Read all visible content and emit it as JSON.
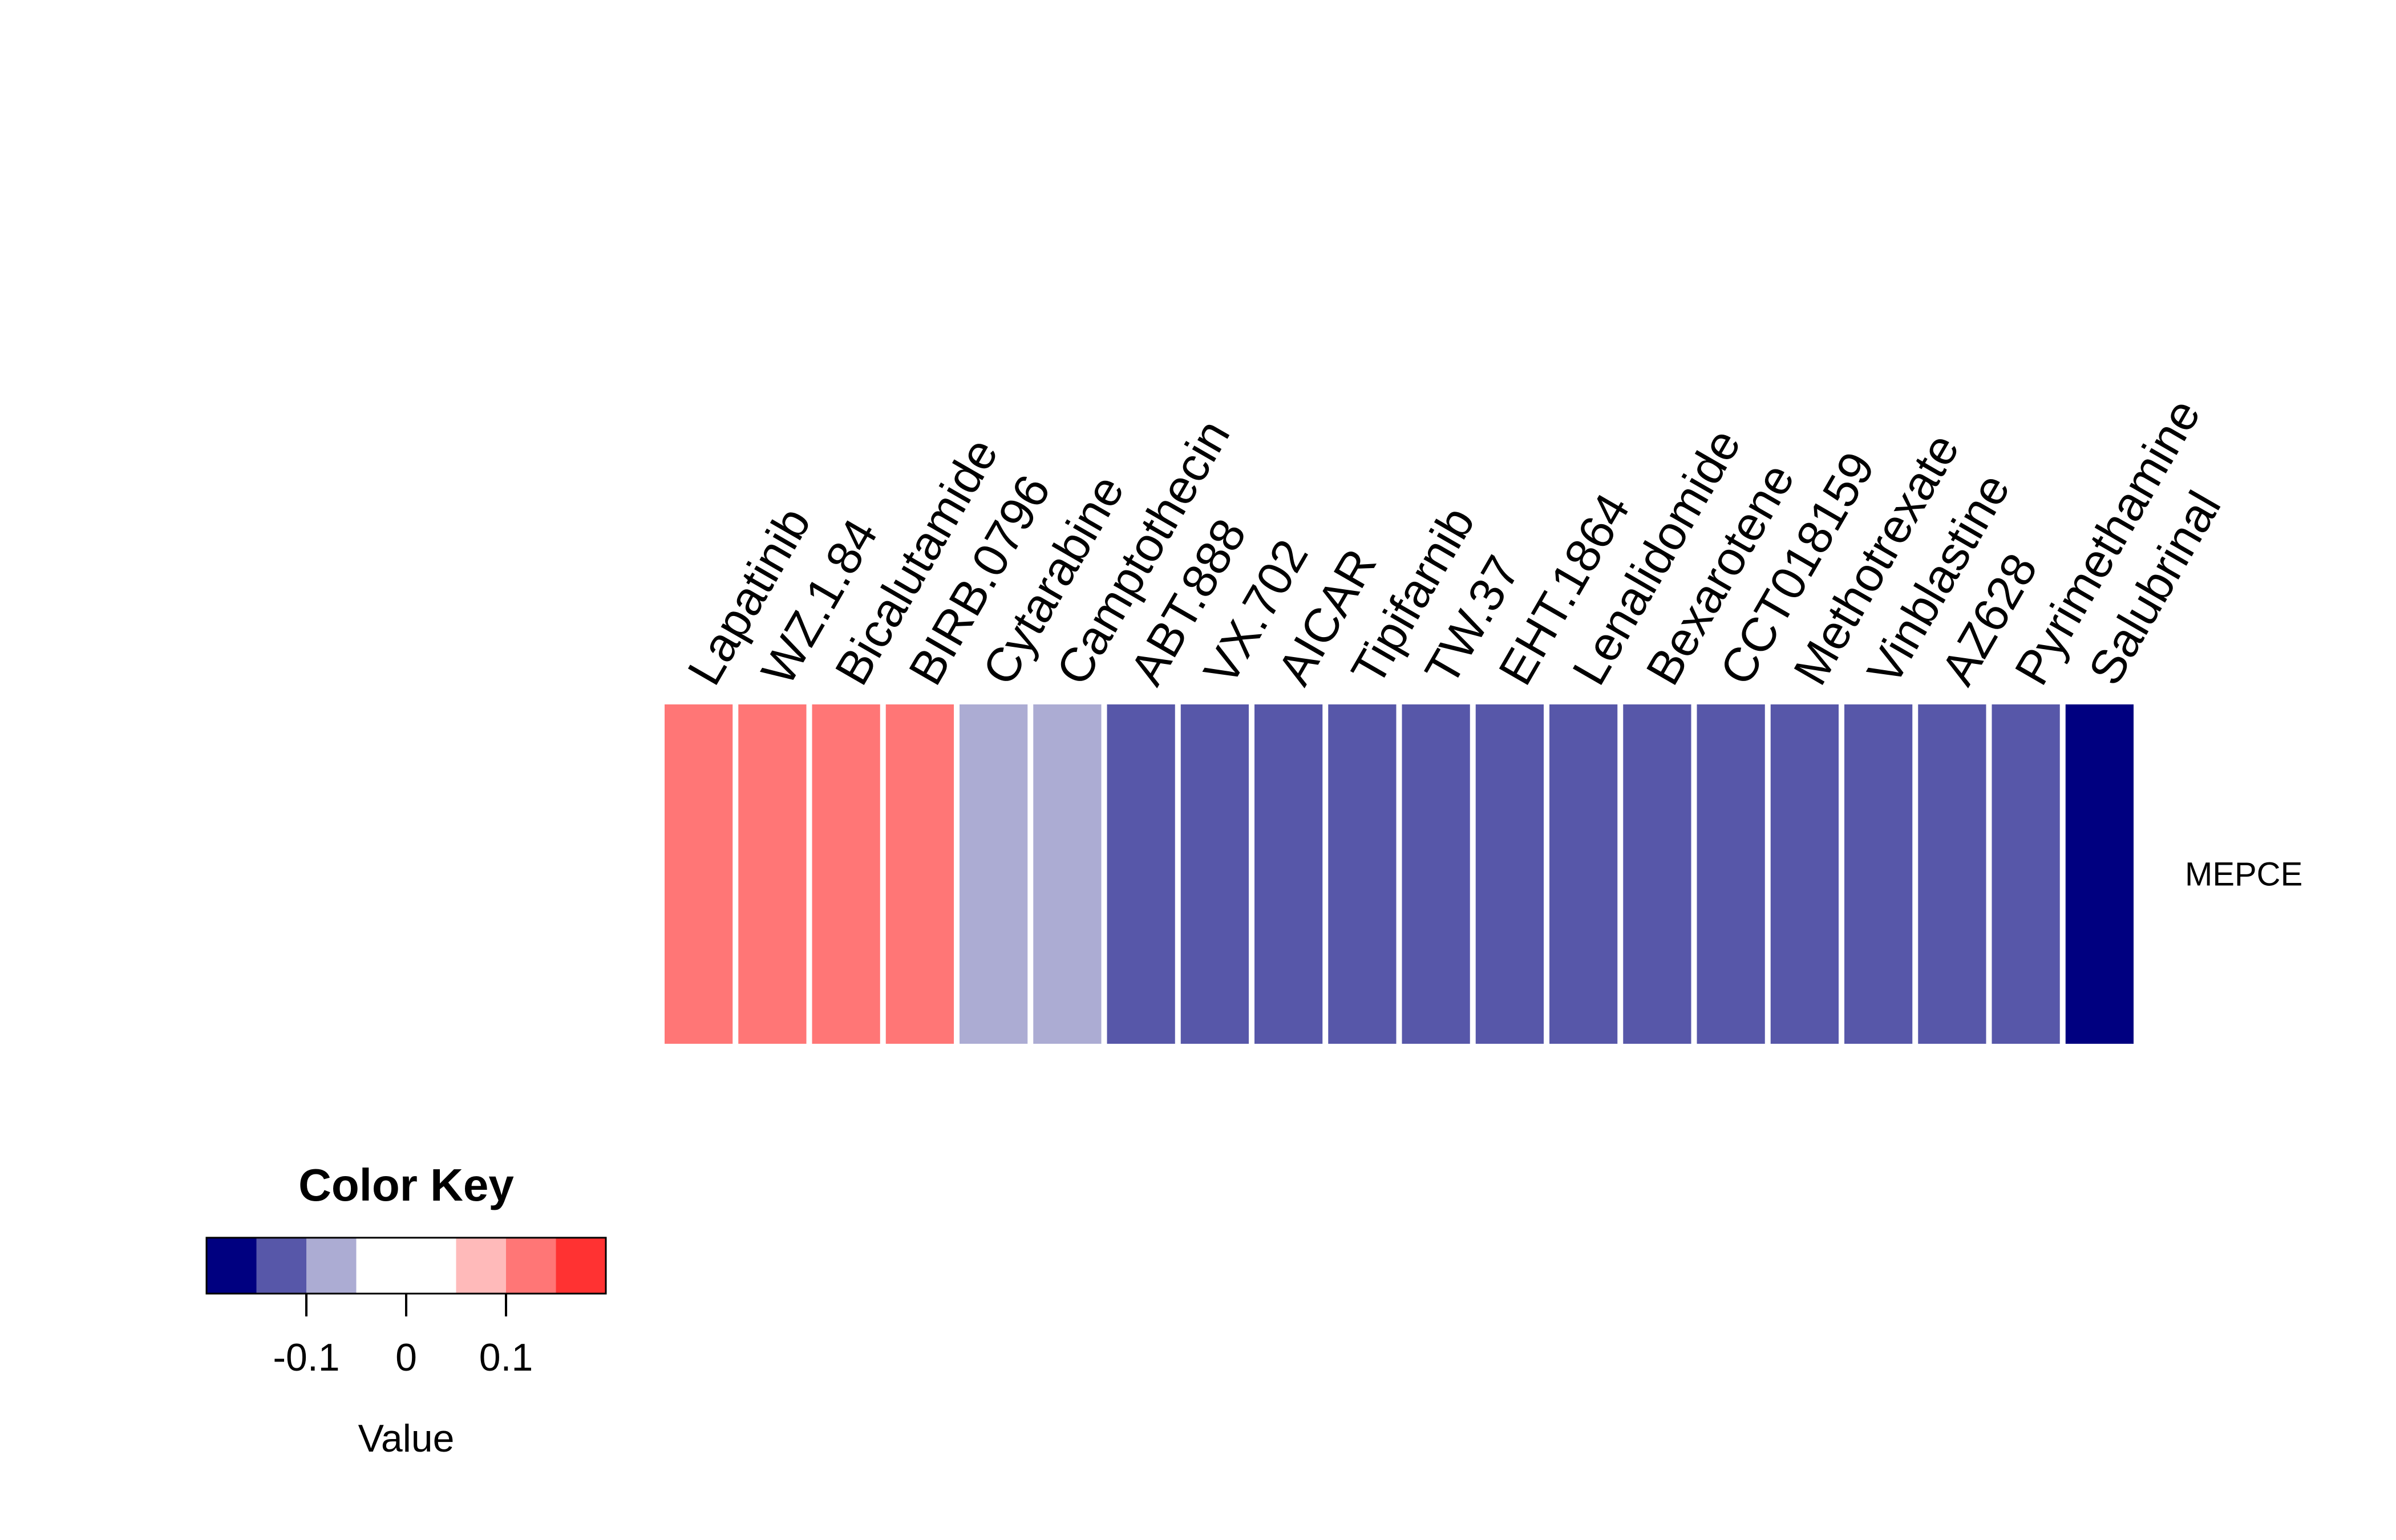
{
  "chart_data": {
    "type": "heatmap",
    "rows": [
      "MEPCE"
    ],
    "columns": [
      "Lapatinib",
      "WZ.1.84",
      "Bicalutamide",
      "BIRB.0796",
      "Cytarabine",
      "Camptothecin",
      "ABT.888",
      "VX.702",
      "AICAR",
      "Tipifarnib",
      "TW.37",
      "EHT.1864",
      "Lenalidomide",
      "Bexarotene",
      "CCT018159",
      "Methotrexate",
      "Vinblastine",
      "AZ628",
      "Pyrimethamine",
      "Salubrinal"
    ],
    "values": [
      [
        0.12,
        0.12,
        0.12,
        0.12,
        -0.07,
        -0.07,
        -0.12,
        -0.12,
        -0.12,
        -0.12,
        -0.12,
        -0.12,
        -0.12,
        -0.12,
        -0.12,
        -0.12,
        -0.12,
        -0.12,
        -0.12,
        -0.17
      ]
    ],
    "color_key": {
      "title": "Color Key",
      "xlabel": "Value",
      "breaks": [
        -0.2,
        -0.15,
        -0.1,
        -0.05,
        0.05,
        0.1,
        0.15,
        0.2
      ],
      "colors": [
        "#000080",
        "#5757A9",
        "#ACACD3",
        "#FFFFFF",
        "#FFBABA",
        "#FF7676",
        "#FF3232"
      ],
      "ticks": [
        -0.1,
        0,
        0.1
      ],
      "tick_labels": [
        "-0.1",
        "0",
        "0.1"
      ]
    }
  }
}
